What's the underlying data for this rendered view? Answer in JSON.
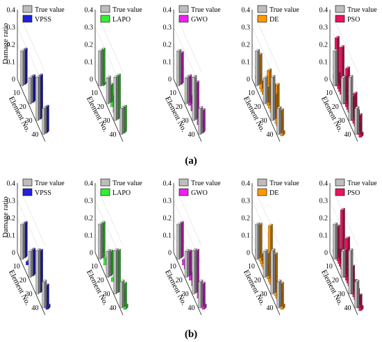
{
  "figure": {
    "panel_labels": [
      "(a)",
      "(b)"
    ]
  },
  "chart_data": [
    {
      "type": "bar",
      "panel": "(a)",
      "ylabel": "Damage ratio",
      "xlabel": "Element No.",
      "ylim": [
        0,
        0.4
      ],
      "yticks": [
        0,
        0.1,
        0.2,
        0.3,
        0.4
      ],
      "xticks": [
        10,
        20,
        30,
        40
      ],
      "subplots": [
        {
          "true_label": "True value",
          "name": "VPSS",
          "color": "#2222dd",
          "true_values": {
            "5": 0.2,
            "18": 0.15,
            "30": 0.25,
            "40": 0.15
          },
          "values": {
            "5": 0.2,
            "18": 0.15,
            "30": 0.25,
            "40": 0.15
          }
        },
        {
          "true_label": "True value",
          "name": "LAPO",
          "color": "#33ee33",
          "true_values": {
            "5": 0.2,
            "18": 0.15,
            "30": 0.25,
            "40": 0.15
          },
          "values": {
            "5": 0.2,
            "6": 0.01,
            "18": 0.1,
            "21": 0.06,
            "25": 0.04,
            "30": 0.25,
            "40": 0.15
          }
        },
        {
          "true_label": "True value",
          "name": "GWO",
          "color": "#ee22ee",
          "true_values": {
            "5": 0.2,
            "18": 0.15,
            "30": 0.25,
            "40": 0.15
          },
          "values": {
            "2": 0.02,
            "5": 0.18,
            "18": 0.15,
            "20": 0.05,
            "24": 0.03,
            "30": 0.21,
            "34": 0.03,
            "37": 0.04,
            "40": 0.13
          }
        },
        {
          "true_label": "True value",
          "name": "DE",
          "color": "#ff9900",
          "true_values": {
            "5": 0.2,
            "18": 0.15,
            "30": 0.25,
            "40": 0.15
          },
          "values": {
            "1": 0.02,
            "3": 0.03,
            "5": 0.17,
            "8": 0.04,
            "10": 0.03,
            "12": 0.05,
            "15": 0.03,
            "18": 0.09,
            "20": 0.2,
            "22": 0.04,
            "25": 0.05,
            "27": 0.17,
            "30": 0.14,
            "33": 0.22,
            "35": 0.08,
            "38": 0.06,
            "40": 0.13,
            "42": 0.02
          }
        },
        {
          "true_label": "True value",
          "name": "PSO",
          "color": "#e8155f",
          "true_values": {
            "5": 0.2,
            "18": 0.15,
            "30": 0.25,
            "40": 0.15
          },
          "values": {
            "1": 0.03,
            "4": 0.26,
            "6": 0.07,
            "8": 0.05,
            "10": 0.04,
            "12": 0.27,
            "15": 0.06,
            "17": 0.14,
            "19": 0.05,
            "21": 0.22,
            "23": 0.05,
            "25": 0.15,
            "27": 0.06,
            "29": 0.12,
            "31": 0.04,
            "33": 0.17,
            "35": 0.08,
            "37": 0.1,
            "39": 0.05,
            "41": 0.11,
            "43": 0.02
          }
        }
      ]
    },
    {
      "type": "bar",
      "panel": "(b)",
      "ylabel": "Damage ratio",
      "xlabel": "Element No.",
      "ylim": [
        0,
        0.4
      ],
      "yticks": [
        0,
        0.1,
        0.2,
        0.3,
        0.4
      ],
      "xticks": [
        10,
        20,
        30,
        40
      ],
      "subplots": [
        {
          "true_label": "True value",
          "name": "VPSS",
          "color": "#2222dd",
          "true_values": {
            "5": 0.2,
            "18": 0.15,
            "30": 0.25,
            "40": 0.15
          },
          "values": {
            "2": 0.02,
            "5": 0.2,
            "10": 0.02,
            "18": 0.15,
            "30": 0.24,
            "40": 0.12,
            "42": 0.02
          }
        },
        {
          "true_label": "True value",
          "name": "LAPO",
          "color": "#33ee33",
          "true_values": {
            "5": 0.2,
            "18": 0.15,
            "30": 0.25,
            "40": 0.15
          },
          "values": {
            "2": 0.02,
            "5": 0.2,
            "10": 0.04,
            "14": 0.03,
            "18": 0.14,
            "22": 0.02,
            "30": 0.24,
            "37": 0.05,
            "40": 0.13,
            "42": 0.02
          }
        },
        {
          "true_label": "True value",
          "name": "GWO",
          "color": "#ee22ee",
          "true_values": {
            "5": 0.2,
            "18": 0.15,
            "30": 0.25,
            "40": 0.15
          },
          "values": {
            "2": 0.02,
            "5": 0.2,
            "10": 0.03,
            "13": 0.03,
            "18": 0.14,
            "21": 0.04,
            "25": 0.03,
            "30": 0.24,
            "34": 0.04,
            "37": 0.03,
            "40": 0.13,
            "42": 0.02
          }
        },
        {
          "true_label": "True value",
          "name": "DE",
          "color": "#ff9900",
          "true_values": {
            "5": 0.2,
            "18": 0.15,
            "30": 0.25,
            "40": 0.15
          },
          "values": {
            "1": 0.02,
            "3": 0.02,
            "5": 0.19,
            "7": 0.03,
            "9": 0.04,
            "11": 0.03,
            "13": 0.05,
            "15": 0.03,
            "18": 0.13,
            "20": 0.05,
            "22": 0.32,
            "24": 0.04,
            "26": 0.06,
            "28": 0.04,
            "30": 0.22,
            "32": 0.05,
            "34": 0.07,
            "36": 0.05,
            "38": 0.06,
            "40": 0.13,
            "42": 0.02
          }
        },
        {
          "true_label": "True value",
          "name": "PSO",
          "color": "#e8155f",
          "true_values": {
            "5": 0.2,
            "18": 0.15,
            "30": 0.25,
            "40": 0.15
          },
          "values": {
            "1": 0.02,
            "3": 0.04,
            "5": 0.18,
            "7": 0.06,
            "9": 0.04,
            "11": 0.08,
            "13": 0.34,
            "15": 0.07,
            "17": 0.14,
            "19": 0.05,
            "21": 0.24,
            "23": 0.06,
            "25": 0.11,
            "27": 0.05,
            "29": 0.14,
            "31": 0.07,
            "33": 0.09,
            "35": 0.04,
            "37": 0.07,
            "39": 0.05,
            "41": 0.07,
            "43": 0.02
          }
        }
      ]
    }
  ]
}
